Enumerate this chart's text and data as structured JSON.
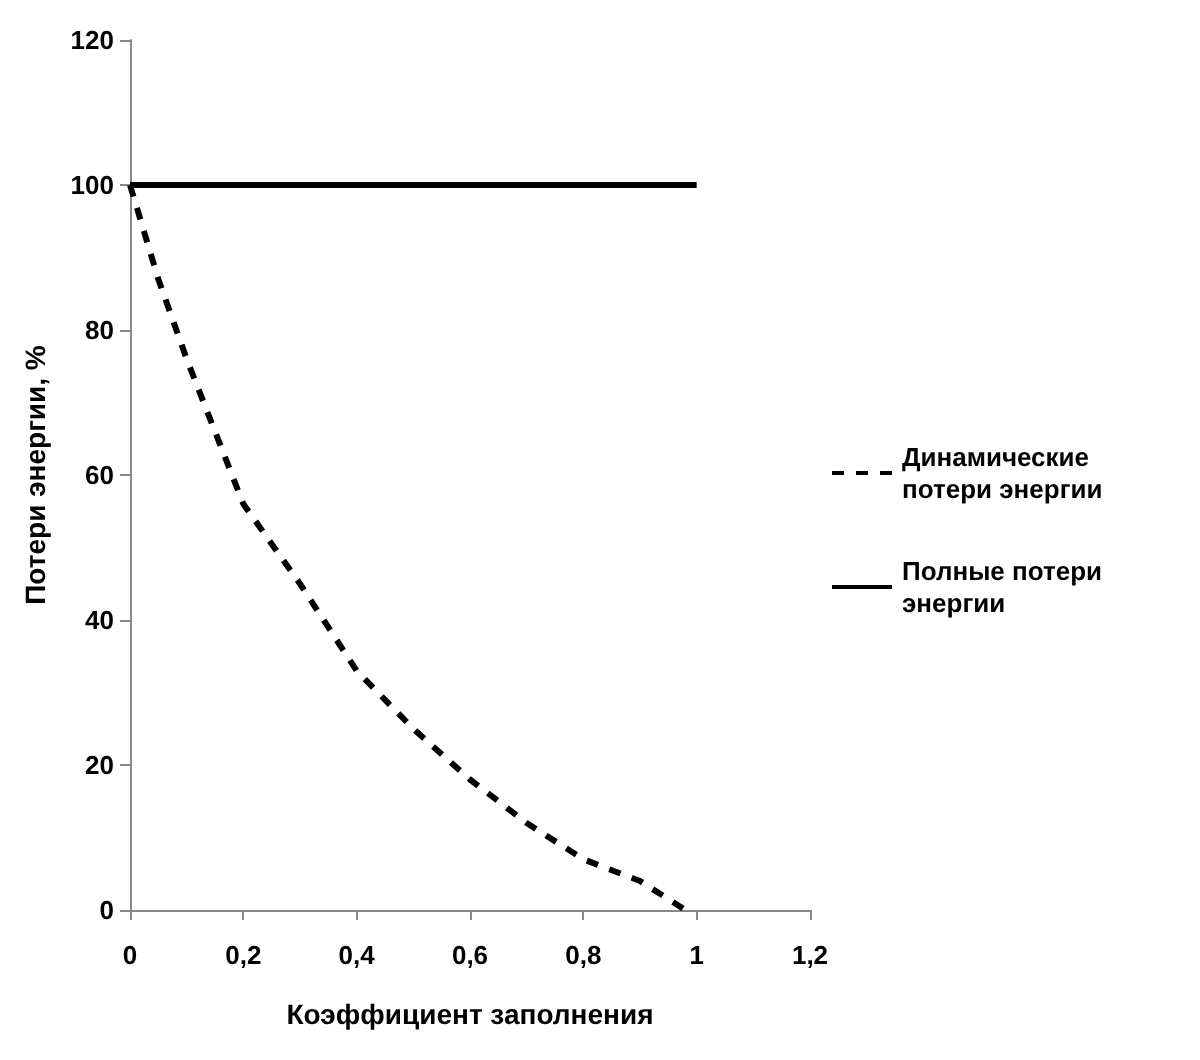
{
  "chart_data": {
    "type": "line",
    "xlabel": "Коэффициент заполнения",
    "ylabel": "Потери энергии, %",
    "series": [
      {
        "name": "Динамические потери энергии",
        "color": "#000000",
        "line_style": "dashed",
        "x": [
          0,
          0.05,
          0.1,
          0.15,
          0.2,
          0.3,
          0.4,
          0.5,
          0.6,
          0.7,
          0.8,
          0.9,
          0.98
        ],
        "values": [
          100,
          87,
          76,
          66,
          56,
          45,
          33,
          25,
          18,
          12,
          7,
          4,
          0
        ]
      },
      {
        "name": "Полные потери энергии",
        "color": "#000000",
        "line_style": "solid",
        "x": [
          0,
          1
        ],
        "values": [
          100,
          100
        ]
      }
    ],
    "xlim": [
      0,
      1.2
    ],
    "xticks": [
      {
        "value": 0,
        "label": "0"
      },
      {
        "value": 0.2,
        "label": "0,2"
      },
      {
        "value": 0.4,
        "label": "0,4"
      },
      {
        "value": 0.6,
        "label": "0,6"
      },
      {
        "value": 0.8,
        "label": "0,8"
      },
      {
        "value": 1,
        "label": "1"
      },
      {
        "value": 1.2,
        "label": "1,2"
      }
    ],
    "ylim": [
      0,
      120
    ],
    "yticks": [
      0,
      20,
      40,
      60,
      80,
      100,
      120
    ],
    "grid": false,
    "legend": "right",
    "marker": "none"
  }
}
